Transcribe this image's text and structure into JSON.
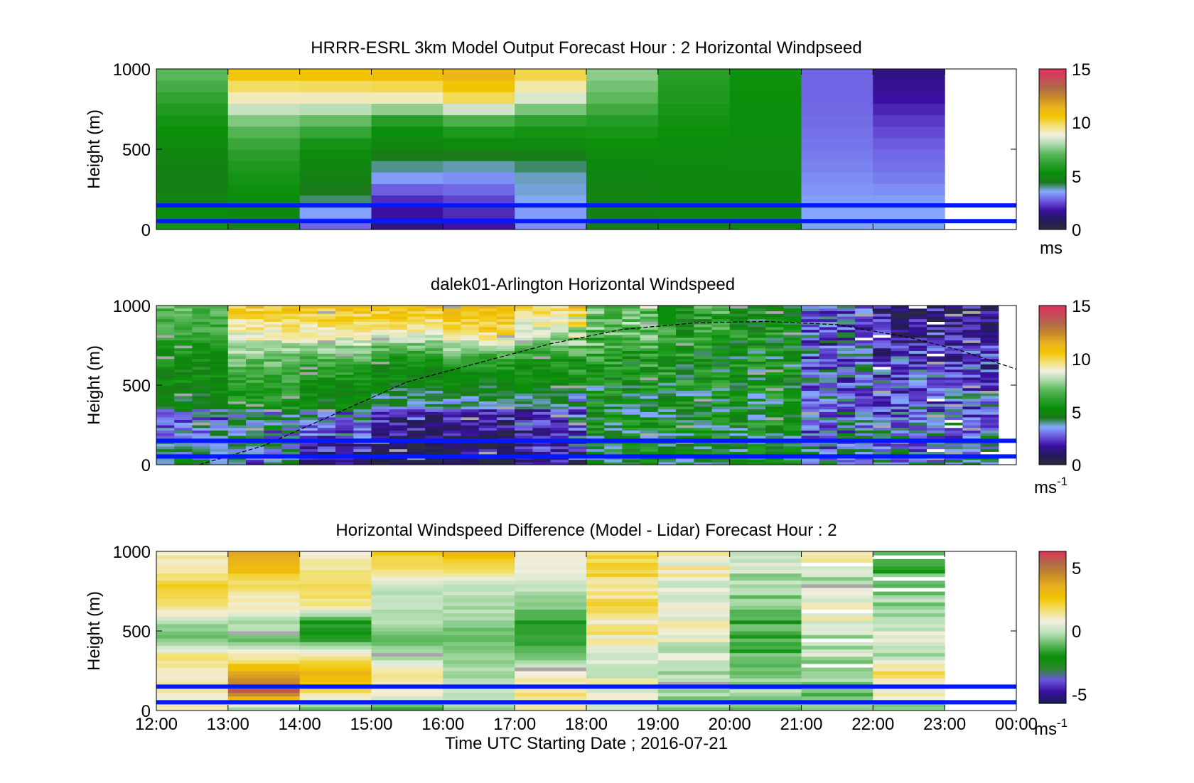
{
  "colors": {
    "speed_scale": [
      "#2a2a44",
      "#241a5c",
      "#3a10a0",
      "#6a55dd",
      "#86aaff",
      "#1a7a1a",
      "#0a8f0a",
      "#2da02d",
      "#5cb85c",
      "#a8d8a8",
      "#f2efe0",
      "#f2e070",
      "#f2c400",
      "#e8b020",
      "#c88a28",
      "#b06a4a",
      "#c84a5a",
      "#e0305a"
    ],
    "diff_scale": [
      "#1a1a55",
      "#3a10a0",
      "#6a55dd",
      "#2a8a2a",
      "#0a8f0a",
      "#5cb85c",
      "#b8e0b8",
      "#f2efe0",
      "#f2e070",
      "#f2c400",
      "#e8b020",
      "#c88a28",
      "#b06a4a",
      "#e0305a"
    ],
    "band_line": "#0019ff"
  },
  "chart_data": [
    {
      "type": "heatmap",
      "title": "HRRR-ESRL 3km Model Output   Forecast Hour : 2 Horizontal Windpseed",
      "ylabel": "Height (m)",
      "ylim": [
        0,
        1000
      ],
      "yticks": [
        "0",
        "500",
        "1000"
      ],
      "x_range_hours_utc": [
        12,
        24
      ],
      "colorbar": {
        "ticks": [
          "0",
          "5",
          "10",
          "15"
        ],
        "unit": "ms",
        "range": [
          0,
          15
        ]
      },
      "hour_columns": [
        {
          "hour": 12,
          "speed_by_height": [
            5.5,
            4.8,
            4.6,
            5.0,
            5.4,
            6.2,
            7.0
          ]
        },
        {
          "hour": 13,
          "speed_by_height": [
            4.8,
            5.2,
            5.6,
            6.2,
            7.2,
            9.0,
            10.5
          ]
        },
        {
          "hour": 14,
          "speed_by_height": [
            2.8,
            4.2,
            4.8,
            5.2,
            6.8,
            9.0,
            10.6
          ]
        },
        {
          "hour": 15,
          "speed_by_height": [
            1.4,
            2.2,
            3.6,
            4.8,
            5.5,
            9.0,
            10.8
          ]
        },
        {
          "hour": 16,
          "speed_by_height": [
            1.8,
            2.5,
            3.4,
            4.8,
            6.2,
            9.8,
            11.2
          ]
        },
        {
          "hour": 17,
          "speed_by_height": [
            3.2,
            3.6,
            3.8,
            4.8,
            5.8,
            8.4,
            10.0
          ]
        },
        {
          "hour": 18,
          "speed_by_height": [
            4.6,
            4.8,
            4.9,
            5.2,
            5.8,
            7.0,
            7.6
          ]
        },
        {
          "hour": 19,
          "speed_by_height": [
            4.8,
            5.0,
            5.0,
            5.2,
            5.4,
            5.8,
            6.0
          ]
        },
        {
          "hour": 20,
          "speed_by_height": [
            4.8,
            5.0,
            5.0,
            5.1,
            5.2,
            5.3,
            5.4
          ]
        },
        {
          "hour": 21,
          "speed_by_height": [
            3.6,
            3.4,
            3.2,
            3.0,
            2.9,
            2.8,
            2.8
          ]
        },
        {
          "hour": 22,
          "speed_by_height": [
            3.6,
            3.4,
            3.0,
            2.8,
            2.4,
            1.8,
            1.4
          ]
        }
      ],
      "band_heights_m": [
        52,
        150
      ]
    },
    {
      "type": "heatmap",
      "title": "dalek01-Arlington  Horizontal Windspeed",
      "ylabel": "Height (m)",
      "ylim": [
        0,
        1000
      ],
      "yticks": [
        "0",
        "500",
        "1000"
      ],
      "x_range_hours_utc": [
        12,
        24
      ],
      "colorbar": {
        "ticks": [
          "0",
          "5",
          "10",
          "15"
        ],
        "unit": "ms",
        "unit_exponent": "-1",
        "range": [
          0,
          15
        ]
      },
      "column_step_hours": 0.25,
      "boundary_layer_curve": {
        "hours": [
          12.6,
          13.5,
          14.5,
          15.5,
          16.5,
          17.5,
          18.5,
          19.5,
          20.5,
          21.5,
          22.5,
          23.2,
          24.0
        ],
        "heights_m": [
          0,
          120,
          320,
          520,
          640,
          760,
          850,
          890,
          900,
          880,
          800,
          720,
          600
        ]
      },
      "band_heights_m": [
        52,
        150
      ]
    },
    {
      "type": "heatmap",
      "title": "Horizontal Windspeed Difference (Model - Lidar) Forecast Hour : 2",
      "ylabel": "Height (m)",
      "xlabel": "Time UTC  Starting Date ; 2016-07-21",
      "xticks": [
        "12:00",
        "13:00",
        "14:00",
        "15:00",
        "16:00",
        "17:00",
        "18:00",
        "19:00",
        "20:00",
        "21:00",
        "22:00",
        "23:00",
        "00:00"
      ],
      "ylim": [
        0,
        1000
      ],
      "yticks": [
        "0",
        "500",
        "1000"
      ],
      "x_range_hours_utc": [
        12,
        24
      ],
      "colorbar": {
        "ticks": [
          "-5",
          "0",
          "5"
        ],
        "unit": "ms",
        "unit_exponent": "-1",
        "range": [
          -6,
          6
        ]
      },
      "hour_columns": [
        {
          "hour": 12,
          "diff_by_height": [
            1.0,
            0.8,
            0.6,
            1.4,
            -1.2,
            -0.6,
            1.5,
            2.0,
            1.0,
            0.8
          ]
        },
        {
          "hour": 13,
          "diff_by_height": [
            -1.0,
            5.5,
            3.5,
            1.0,
            -1.2,
            -0.5,
            0.8,
            1.2,
            2.5,
            3.2
          ]
        },
        {
          "hour": 14,
          "diff_by_height": [
            -1.5,
            1.5,
            3.0,
            1.2,
            -1.8,
            -2.2,
            1.2,
            1.5,
            1.2,
            0.8
          ]
        },
        {
          "hour": 15,
          "diff_by_height": [
            -2.0,
            0.8,
            1.2,
            -0.6,
            -1.4,
            -0.6,
            -0.2,
            -0.3,
            1.2,
            2.2
          ]
        },
        {
          "hour": 16,
          "diff_by_height": [
            -0.6,
            -0.2,
            -0.6,
            -0.8,
            -1.4,
            -0.8,
            -0.5,
            -0.3,
            1.2,
            3.0
          ]
        },
        {
          "hour": 17,
          "diff_by_height": [
            1.0,
            1.2,
            0.6,
            -1.2,
            -1.8,
            -2.0,
            -1.0,
            -0.2,
            0.4,
            0.6
          ]
        },
        {
          "hour": 18,
          "diff_by_height": [
            -0.4,
            0.4,
            0.3,
            0.4,
            0.8,
            1.0,
            1.2,
            1.4,
            1.8,
            2.0
          ]
        },
        {
          "hour": 19,
          "diff_by_height": [
            -0.5,
            -0.6,
            -0.4,
            -0.3,
            0.2,
            0.4,
            0.2,
            0.5,
            0.6,
            0.4
          ]
        },
        {
          "hour": 20,
          "diff_by_height": [
            -1.2,
            -1.0,
            -1.4,
            -1.6,
            -2.0,
            -1.8,
            -1.2,
            -0.8,
            -0.6,
            -0.4
          ]
        },
        {
          "hour": 21,
          "diff_by_height": [
            -1.5,
            -1.0,
            -0.6,
            -0.4,
            -0.8,
            0.4,
            0.8,
            -0.4,
            -0.4,
            1.2
          ]
        },
        {
          "hour": 22,
          "diff_by_height": [
            -0.6,
            0.8,
            1.2,
            -0.2,
            0.6,
            -0.6,
            -0.8,
            -1.2,
            -1.6,
            -2.0
          ]
        }
      ],
      "band_heights_m": [
        52,
        150
      ]
    }
  ]
}
